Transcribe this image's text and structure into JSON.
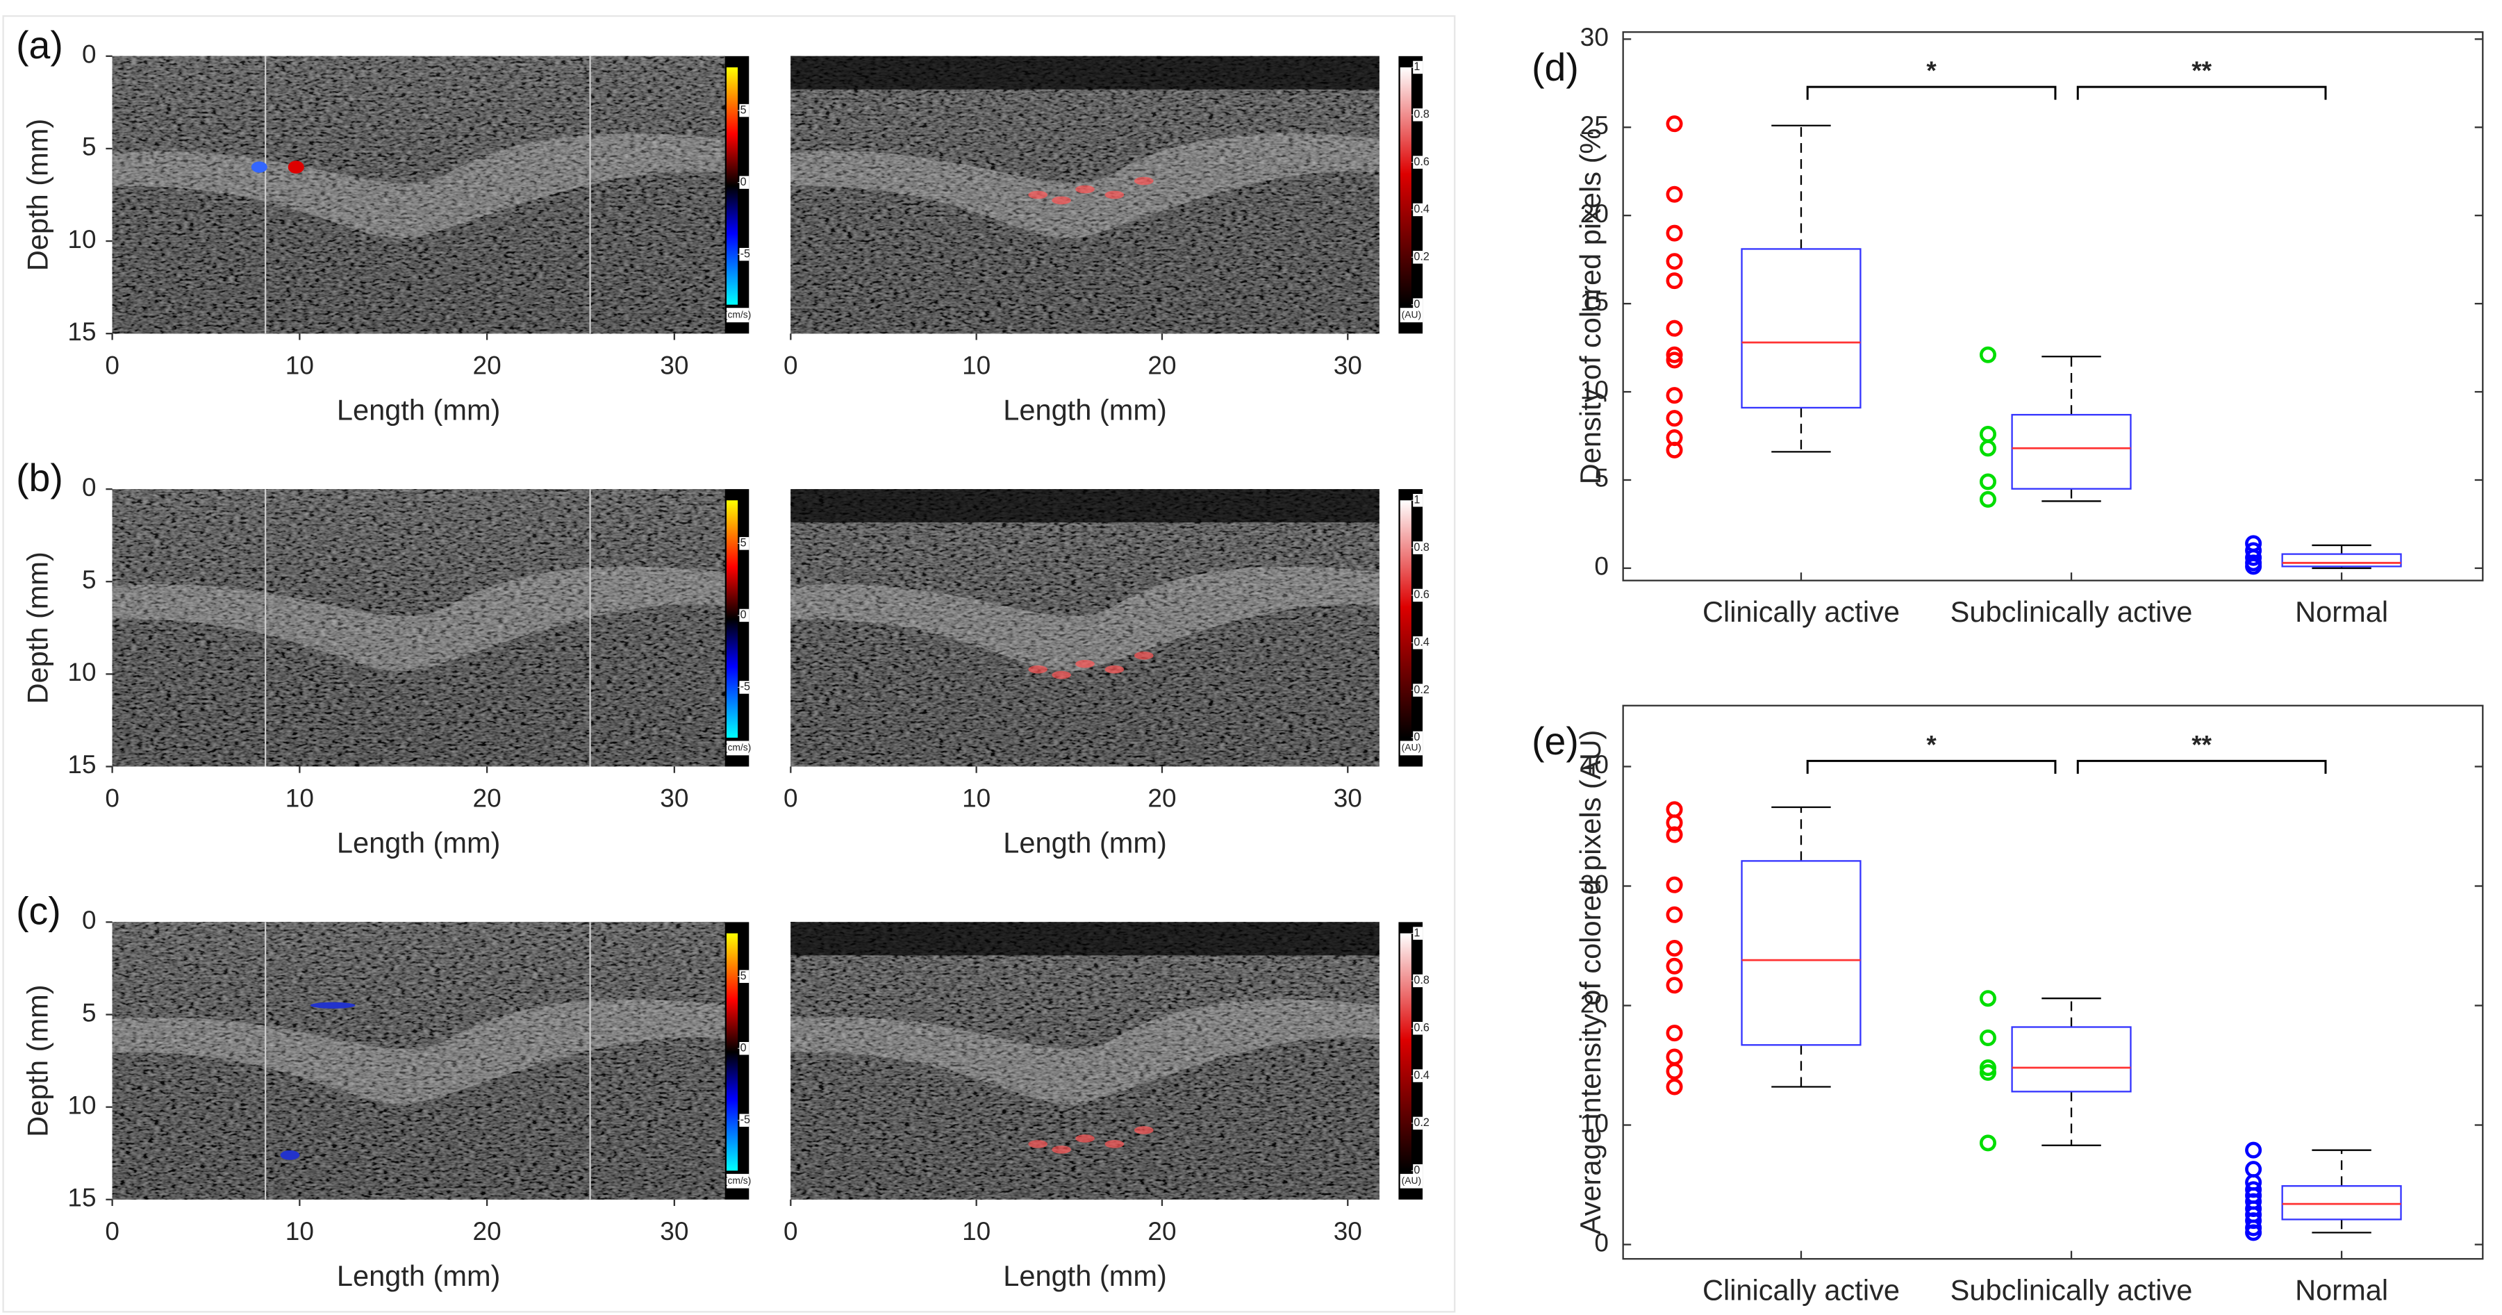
{
  "chart_data": [
    {
      "type": "image",
      "panel_label": "(a)",
      "xlabel": "Length (mm)",
      "ylabel": "Depth (mm)",
      "xlim": [
        0,
        32.7
      ],
      "ylim": [
        15,
        0
      ],
      "xticks": [
        0,
        10,
        20,
        30
      ],
      "yticks": [
        0,
        5,
        10,
        15
      ],
      "colorbar": {
        "colormap": "doppler",
        "lim": [
          -8.5,
          8
        ],
        "ticks": [
          5,
          0,
          -5
        ],
        "label": "(cm/s)"
      }
    },
    {
      "type": "image",
      "xlabel": "Length (mm)",
      "xlim": [
        0,
        31.7
      ],
      "ylim": [
        15,
        0
      ],
      "xticks": [
        0,
        10,
        20,
        30
      ],
      "colorbar": {
        "colormap": "photoacoustic",
        "lim": [
          0,
          1
        ],
        "ticks": [
          0,
          0.2,
          0.4,
          0.6,
          0.8,
          1
        ],
        "label": "(AU)"
      }
    },
    {
      "type": "image",
      "panel_label": "(b)",
      "xlabel": "Length (mm)",
      "ylabel": "Depth (mm)",
      "xlim": [
        0,
        32.7
      ],
      "ylim": [
        15,
        0
      ],
      "xticks": [
        0,
        10,
        20,
        30
      ],
      "yticks": [
        0,
        5,
        10,
        15
      ],
      "colorbar": {
        "colormap": "doppler",
        "lim": [
          -8.5,
          8
        ],
        "ticks": [
          5,
          0,
          -5
        ],
        "label": "(cm/s)"
      }
    },
    {
      "type": "image",
      "xlabel": "Length (mm)",
      "xlim": [
        0,
        31.7
      ],
      "ylim": [
        15,
        0
      ],
      "xticks": [
        0,
        10,
        20,
        30
      ],
      "colorbar": {
        "colormap": "photoacoustic",
        "lim": [
          0,
          1
        ],
        "ticks": [
          0,
          0.2,
          0.4,
          0.6,
          0.8,
          1
        ],
        "label": "(AU)"
      }
    },
    {
      "type": "image",
      "panel_label": "(c)",
      "xlabel": "Length (mm)",
      "ylabel": "Depth (mm)",
      "xlim": [
        0,
        32.7
      ],
      "ylim": [
        15,
        0
      ],
      "xticks": [
        0,
        10,
        20,
        30
      ],
      "yticks": [
        0,
        5,
        10,
        15
      ],
      "colorbar": {
        "colormap": "doppler",
        "lim": [
          -8.5,
          8
        ],
        "ticks": [
          5,
          0,
          -5
        ],
        "label": "(cm/s)"
      }
    },
    {
      "type": "image",
      "xlabel": "Length (mm)",
      "xlim": [
        0,
        31.7
      ],
      "ylim": [
        15,
        0
      ],
      "xticks": [
        0,
        10,
        20,
        30
      ],
      "colorbar": {
        "colormap": "photoacoustic",
        "lim": [
          0,
          1
        ],
        "ticks": [
          0,
          0.2,
          0.4,
          0.6,
          0.8,
          1
        ],
        "label": "(AU)"
      }
    },
    {
      "type": "box",
      "panel_label": "(d)",
      "ylabel": "Density of colored pixels (%",
      "categories": [
        "Clinically active",
        "Subclinically active",
        "Normal"
      ],
      "ylim": [
        -0.7,
        30.4
      ],
      "yticks": [
        0,
        5,
        10,
        15,
        20,
        25,
        30
      ],
      "box_color": "#3333ff",
      "median_color": "#ff3333",
      "whisker_color": "#000000",
      "boxes": [
        {
          "whisker_low": 6.6,
          "q1": 9.1,
          "median": 12.8,
          "q3": 18.1,
          "whisker_high": 25.1,
          "point_color": "#ff0000",
          "points": [
            25.2,
            21.2,
            19.0,
            17.4,
            16.3,
            13.6,
            12.1,
            11.8,
            9.8,
            8.5,
            7.4,
            6.7
          ]
        },
        {
          "whisker_low": 3.8,
          "q1": 4.5,
          "median": 6.8,
          "q3": 8.7,
          "whisker_high": 12.0,
          "point_color": "#00dd00",
          "points": [
            12.1,
            7.6,
            6.8,
            4.9,
            3.9
          ]
        },
        {
          "whisker_low": 0,
          "q1": 0.1,
          "median": 0.3,
          "q3": 0.8,
          "whisker_high": 1.3,
          "point_color": "#0000ff",
          "points": [
            1.4,
            1.0,
            0.6,
            0.3,
            0.1
          ]
        }
      ],
      "significance": [
        {
          "between": [
            0,
            1
          ],
          "label": "*"
        },
        {
          "between": [
            1,
            2
          ],
          "label": "**"
        }
      ]
    },
    {
      "type": "box",
      "panel_label": "(e)",
      "ylabel": "Average intensity of colored pixels (AU)",
      "categories": [
        "Clinically active",
        "Subclinically active",
        "Normal"
      ],
      "ylim": [
        -1.2,
        45.1
      ],
      "yticks": [
        0,
        10,
        20,
        30,
        40
      ],
      "box_color": "#3333ff",
      "median_color": "#ff3333",
      "whisker_color": "#000000",
      "boxes": [
        {
          "whisker_low": 13.2,
          "q1": 16.7,
          "median": 23.8,
          "q3": 32.1,
          "whisker_high": 36.6,
          "point_color": "#ff0000",
          "points": [
            36.4,
            35.3,
            34.3,
            30.1,
            27.6,
            24.8,
            23.3,
            21.7,
            17.7,
            15.7,
            14.5,
            13.2
          ]
        },
        {
          "whisker_low": 8.3,
          "q1": 12.8,
          "median": 14.8,
          "q3": 18.2,
          "whisker_high": 20.6,
          "point_color": "#00dd00",
          "points": [
            20.6,
            17.3,
            14.8,
            14.4,
            8.5
          ]
        },
        {
          "whisker_low": 1.0,
          "q1": 2.1,
          "median": 3.4,
          "q3": 4.9,
          "whisker_high": 7.9,
          "point_color": "#0000ff",
          "points": [
            7.9,
            6.3,
            5.2,
            4.6,
            4.1,
            3.6,
            3.0,
            2.5,
            2.0,
            1.4,
            1.0
          ]
        }
      ],
      "significance": [
        {
          "between": [
            0,
            1
          ],
          "label": "*"
        },
        {
          "between": [
            1,
            2
          ],
          "label": "**"
        }
      ]
    }
  ]
}
